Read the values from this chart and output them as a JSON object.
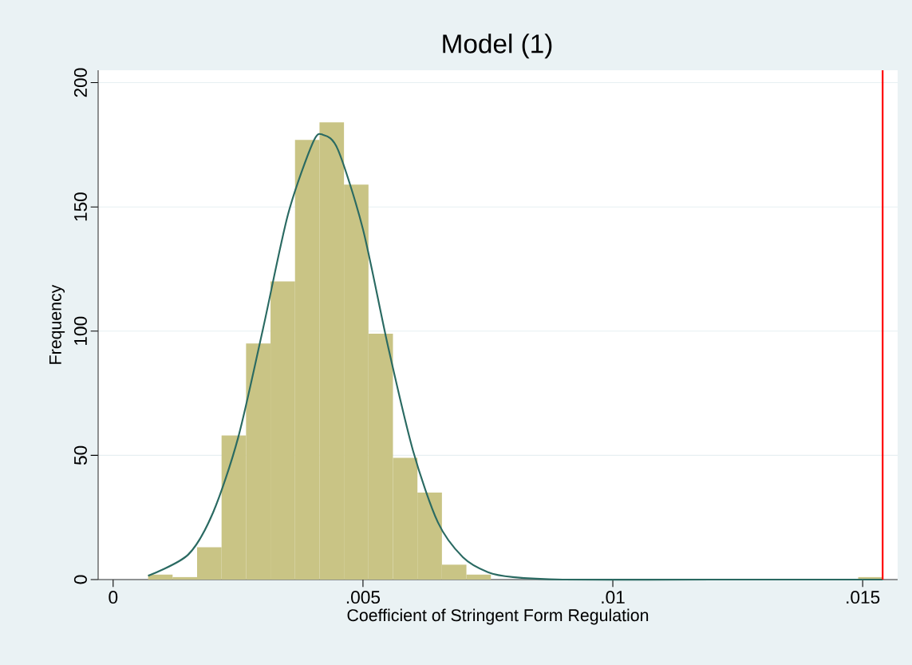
{
  "chart_data": {
    "type": "histogram",
    "title": "Model (1)",
    "xlabel": "Coefficient of Stringent Form Regulation",
    "ylabel": "Frequency",
    "series": [
      {
        "color": "#c9c485",
        "bins": [
          0.0007,
          0.00119,
          0.00168,
          0.00217,
          0.00266,
          0.00315,
          0.00364,
          0.00413,
          0.00462,
          0.00511,
          0.0056,
          0.00609,
          0.00658,
          0.00707,
          0.00756,
          0.00805,
          0.00854,
          0.00903,
          0.00952,
          0.01001,
          0.0105,
          0.01099,
          0.01148,
          0.01197,
          0.01246,
          0.01295,
          0.01344,
          0.01393,
          0.01442,
          0.01491,
          0.0154
        ],
        "values": [
          2,
          1,
          13,
          58,
          95,
          120,
          177,
          184,
          159,
          99,
          49,
          35,
          6,
          2,
          0,
          0,
          0,
          0,
          0,
          0,
          0,
          0,
          0,
          0,
          0,
          0,
          0,
          0,
          0,
          1
        ]
      },
      {
        "type": "line",
        "color": "#2a6a62",
        "x": [
          0.0007,
          0.0015,
          0.002,
          0.0025,
          0.003,
          0.0035,
          0.004,
          0.0042,
          0.0045,
          0.005,
          0.0055,
          0.006,
          0.0065,
          0.007,
          0.0075,
          0.008,
          0.009,
          0.012,
          0.0154
        ],
        "values": [
          1.5,
          10,
          27,
          57,
          101,
          147,
          176,
          179,
          173,
          141,
          94,
          52,
          23,
          9,
          3,
          1,
          0,
          0,
          0
        ]
      }
    ],
    "xlim": [
      -0.0003,
      0.0157
    ],
    "ylim": [
      0,
      205
    ],
    "xticks": [
      0,
      {
        "value": 0.005,
        "label": ".005"
      },
      {
        "value": 0.01,
        "label": ".01"
      },
      {
        "value": 0.015,
        "label": ".015"
      }
    ],
    "yticks": [
      0,
      50,
      100,
      150,
      200
    ],
    "grid": "y",
    "marker": "none",
    "ref_lines": [
      {
        "axis": "x",
        "value": 0.0154,
        "color": "#ff0000"
      }
    ]
  }
}
